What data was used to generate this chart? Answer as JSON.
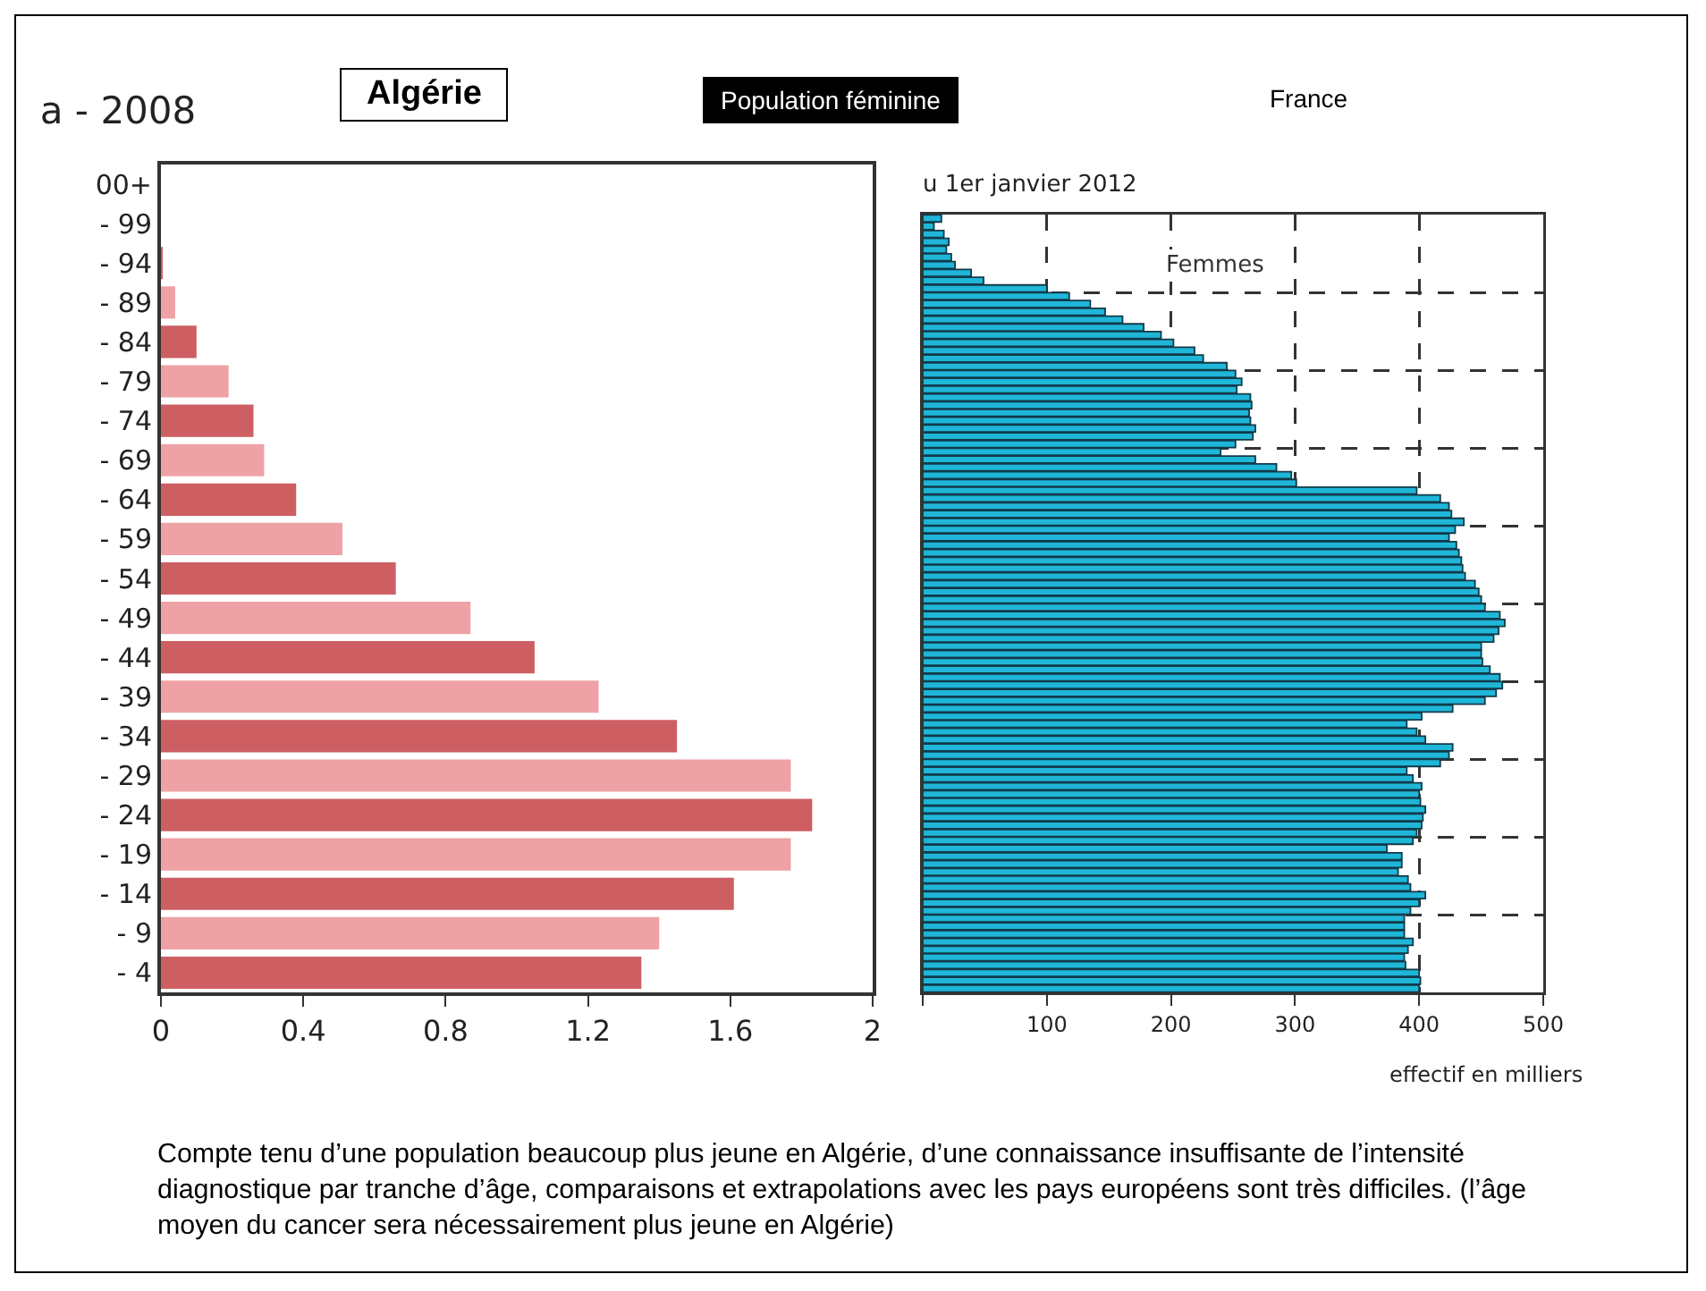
{
  "chart_data": [
    {
      "type": "bar",
      "orientation": "horizontal",
      "title": "a - 2008",
      "annotations": [
        "Algérie",
        "Population féminine"
      ],
      "categories": [
        "00+",
        "- 99",
        "- 94",
        "- 89",
        "- 84",
        "- 79",
        "- 74",
        "- 69",
        "- 64",
        "- 59",
        "- 54",
        "- 49",
        "- 44",
        "- 39",
        "- 34",
        "- 29",
        "- 24",
        "- 19",
        "- 14",
        "- 9",
        "- 4"
      ],
      "values": [
        0,
        0,
        0.005,
        0.04,
        0.1,
        0.19,
        0.26,
        0.29,
        0.38,
        0.51,
        0.66,
        0.87,
        1.05,
        1.23,
        1.45,
        1.77,
        1.83,
        1.77,
        1.61,
        1.4,
        1.35
      ],
      "colors": [
        "#cd5f63",
        "#efa2a6",
        "#cd5f63",
        "#efa2a6",
        "#cd5f63",
        "#efa2a6",
        "#cd5f63",
        "#efa2a6",
        "#cd5f63",
        "#efa2a6",
        "#cd5f63",
        "#efa2a6",
        "#cd5f63",
        "#efa2a6",
        "#cd5f63",
        "#efa2a6",
        "#cd5f63",
        "#efa2a6",
        "#cd5f63",
        "#efa2a6",
        "#cd5f63"
      ],
      "xlim": [
        0,
        2
      ],
      "xticks": [
        0,
        0.4,
        0.8,
        1.2,
        1.6,
        2
      ],
      "grid": false
    },
    {
      "type": "bar",
      "orientation": "horizontal",
      "title": "u 1er janvier 2012",
      "xlabel": "effectif en milliers",
      "annotations": [
        "France",
        "Femmes",
        "Compte tenu d’une population beaucoup plus jeune en Algérie, d’une connaissance insuffisante de l’intensité diagnostique par tranche d’âge, comparaisons et extrapolations avec les pays européens sont très difficiles. (l’âge moyen du cancer sera nécessairement plus jeune en Algérie)"
      ],
      "categories": [
        null,
        null,
        null,
        null,
        null,
        null,
        null,
        null,
        null,
        null,
        null,
        null,
        null,
        null,
        null,
        null,
        null,
        null,
        null,
        null,
        null,
        null,
        null,
        null,
        null,
        null,
        null,
        null,
        null,
        null,
        null,
        null,
        null,
        null,
        null,
        null,
        null,
        null,
        null,
        null,
        null,
        null,
        null,
        null,
        null,
        null,
        null,
        null,
        null,
        null,
        null,
        null,
        null,
        null,
        null,
        null,
        null,
        null,
        null,
        null,
        null,
        null,
        null,
        null,
        null,
        null,
        null,
        null,
        null,
        null,
        null,
        null,
        null,
        null,
        null,
        null,
        null,
        null,
        null,
        null,
        null,
        null,
        null,
        null,
        null,
        null,
        null,
        null,
        null,
        null,
        null,
        null,
        null,
        null,
        null,
        null,
        null,
        null,
        null,
        null
      ],
      "values": [
        15,
        9,
        17,
        21,
        19,
        23,
        26,
        39,
        49,
        100,
        118,
        135,
        147,
        161,
        178,
        192,
        202,
        219,
        226,
        245,
        252,
        257,
        253,
        264,
        265,
        263,
        264,
        268,
        266,
        252,
        240,
        268,
        285,
        297,
        301,
        398,
        417,
        424,
        426,
        436,
        429,
        424,
        430,
        432,
        434,
        435,
        437,
        445,
        448,
        450,
        453,
        465,
        469,
        464,
        460,
        450,
        450,
        451,
        457,
        465,
        467,
        462,
        453,
        427,
        402,
        390,
        398,
        405,
        427,
        424,
        417,
        390,
        395,
        402,
        400,
        401,
        405,
        403,
        402,
        398,
        395,
        374,
        386,
        386,
        383,
        391,
        393,
        405,
        400,
        393,
        388,
        388,
        388,
        395,
        391,
        388,
        389,
        400,
        401,
        400
      ],
      "color": "#1fb6d8",
      "xlim": [
        0,
        500
      ],
      "xticks": [
        {
          "value": 0,
          "label": null
        },
        100,
        200,
        300,
        400,
        500
      ],
      "grid": true,
      "line_style": "dashed"
    }
  ]
}
